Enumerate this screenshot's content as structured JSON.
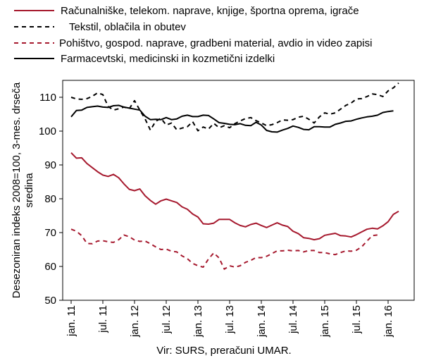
{
  "chart_data": {
    "type": "line",
    "ylabel": "Desezoniran indeks 2008=100, 3-mes. drseča sredina",
    "ylim": [
      50,
      115
    ],
    "yticks": [
      50,
      60,
      70,
      80,
      90,
      100,
      110
    ],
    "xtick_labels": [
      "jan. 11",
      "jul. 11",
      "jan. 12",
      "jul. 12",
      "jan. 13",
      "jul. 13",
      "jan. 14",
      "jul. 14",
      "jan. 15",
      "jul. 15",
      "jan. 16"
    ],
    "source": "Vir: SURS, preračuni UMAR.",
    "grid": false,
    "legend_position": "top",
    "series": [
      {
        "name": "Računalniške, telekom. naprave, knjige, športna oprema, igrače",
        "color": "#a6192e",
        "dash": "solid",
        "values": [
          93.6,
          92.0,
          92.1,
          90.4,
          89.2,
          88.0,
          87.0,
          86.6,
          87.2,
          86.2,
          84.4,
          82.8,
          82.4,
          82.9,
          80.9,
          79.5,
          78.4,
          79.4,
          79.9,
          79.4,
          78.9,
          77.6,
          76.9,
          75.5,
          74.6,
          72.6,
          72.5,
          72.8,
          73.9,
          73.9,
          73.9,
          72.9,
          72.1,
          71.7,
          72.4,
          72.8,
          72.1,
          71.5,
          72.2,
          72.9,
          72.2,
          71.8,
          70.4,
          69.7,
          68.5,
          68.3,
          67.9,
          68.2,
          69.2,
          69.5,
          69.8,
          69.1,
          69.0,
          68.7,
          69.4,
          70.2,
          71.0,
          71.3,
          71.1,
          72.0,
          73.2,
          75.4,
          76.3
        ]
      },
      {
        "name": "Tekstil, oblačila in obutev",
        "color": "#000000",
        "dash": "dashed",
        "values": [
          110.0,
          109.5,
          109.4,
          109.6,
          110.3,
          111.3,
          110.8,
          107.3,
          106.2,
          106.6,
          107.1,
          106.6,
          109.0,
          106.2,
          103.6,
          100.3,
          102.9,
          103.8,
          101.8,
          102.4,
          100.4,
          100.9,
          101.3,
          102.8,
          100.1,
          101.2,
          100.6,
          102.3,
          101.0,
          101.6,
          101.0,
          102.2,
          103.0,
          103.7,
          104.0,
          103.1,
          102.4,
          101.6,
          101.9,
          102.5,
          103.3,
          103.2,
          103.4,
          104.1,
          104.4,
          103.5,
          102.4,
          104.2,
          105.4,
          105.0,
          105.4,
          106.5,
          107.6,
          108.3,
          109.5,
          109.6,
          110.2,
          111.0,
          110.8,
          110.2,
          111.9,
          112.8,
          114.2
        ]
      },
      {
        "name": "Pohištvo, gospod. naprave, gradbeni material, avdio in video zapisi",
        "color": "#a6192e",
        "dash": "dashed",
        "values": [
          71.0,
          70.4,
          69.1,
          66.8,
          66.7,
          67.5,
          67.6,
          67.3,
          67.1,
          67.9,
          69.3,
          68.8,
          67.8,
          67.4,
          67.5,
          66.7,
          65.8,
          65.0,
          65.1,
          64.5,
          64.3,
          63.1,
          62.3,
          60.9,
          60.2,
          59.8,
          62.2,
          64.0,
          62.5,
          59.2,
          60.2,
          59.8,
          60.2,
          61.2,
          61.8,
          62.6,
          62.6,
          63.0,
          63.8,
          64.6,
          64.6,
          64.8,
          64.6,
          64.7,
          64.3,
          64.7,
          64.7,
          64.1,
          64.1,
          63.7,
          63.5,
          64.1,
          64.6,
          64.5,
          64.8,
          65.8,
          67.5,
          69.1,
          69.3
        ]
      },
      {
        "name": "Farmacevtski, medicinski in kozmetični izdelki",
        "color": "#000000",
        "dash": "solid",
        "values": [
          104.2,
          106.1,
          106.2,
          107.0,
          107.2,
          107.4,
          107.1,
          107.0,
          107.5,
          107.6,
          107.1,
          106.8,
          106.5,
          106.2,
          104.4,
          103.4,
          103.5,
          103.4,
          104.0,
          103.4,
          103.6,
          104.4,
          104.7,
          104.3,
          104.3,
          104.7,
          104.6,
          103.6,
          102.5,
          102.3,
          102.0,
          101.9,
          102.2,
          101.7,
          101.6,
          102.6,
          101.8,
          100.2,
          99.8,
          99.7,
          100.3,
          100.8,
          101.5,
          101.1,
          100.5,
          100.4,
          101.3,
          101.3,
          101.2,
          101.2,
          102.0,
          102.4,
          102.9,
          103.0,
          103.5,
          103.9,
          104.2,
          104.4,
          104.7,
          105.5,
          105.8,
          106.0
        ]
      }
    ]
  }
}
